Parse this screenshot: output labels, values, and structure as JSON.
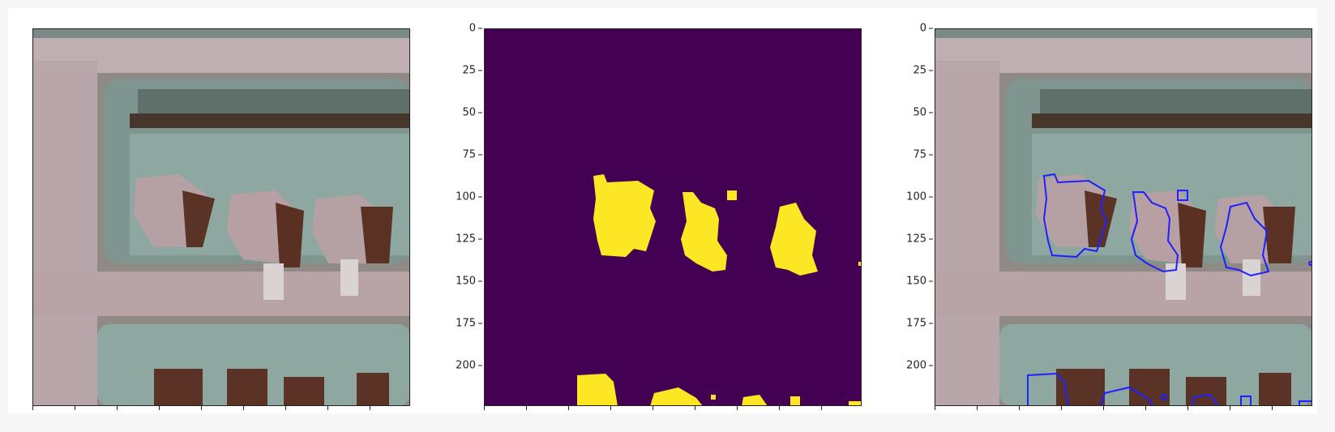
{
  "panels": [
    {
      "name": "aerial-photo"
    },
    {
      "name": "segmentation-mask"
    },
    {
      "name": "contour-overlay"
    }
  ],
  "y_ticks": [
    "0",
    "25",
    "50",
    "75",
    "100",
    "125",
    "150",
    "175",
    "200"
  ],
  "colors": {
    "mask_background": "#440154",
    "mask_foreground": "#fde725",
    "contour": "#1f1fff"
  }
}
